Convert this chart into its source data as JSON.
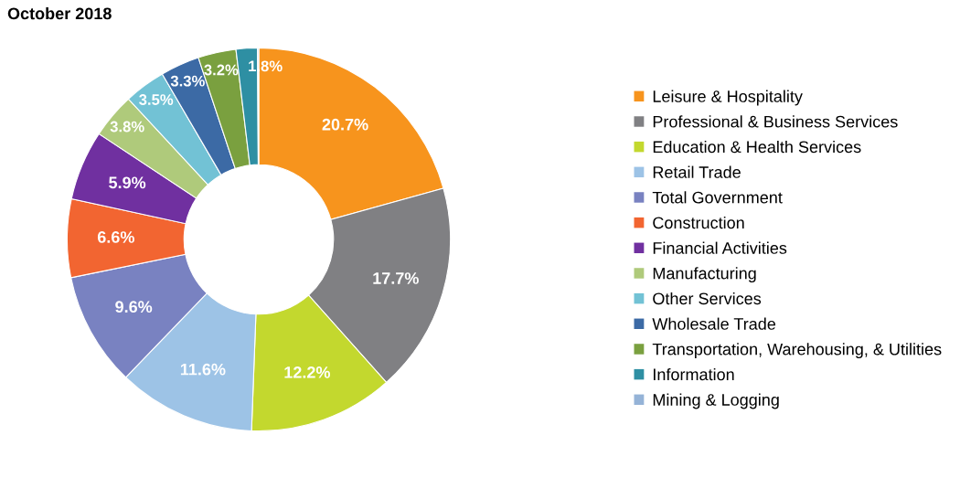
{
  "chart_data": {
    "type": "donut",
    "title": "October 2018",
    "categories": [
      "Leisure & Hospitality",
      "Professional & Business Services",
      "Education & Health Services",
      "Retail Trade",
      "Total Government",
      "Construction",
      "Financial Activities",
      "Manufacturing",
      "Other Services",
      "Wholesale Trade",
      "Transportation, Warehousing, & Utilities",
      "Information",
      "Mining & Logging"
    ],
    "values": [
      20.7,
      17.7,
      12.2,
      11.6,
      9.6,
      6.6,
      5.9,
      3.8,
      3.5,
      3.3,
      3.2,
      1.8,
      0.1
    ],
    "value_labels": [
      "20.7%",
      "17.7%",
      "12.2%",
      "11.6%",
      "9.6%",
      "6.6%",
      "5.9%",
      "3.8%",
      "3.5%",
      "3.3%",
      "3.2%",
      "1.8%",
      null
    ],
    "colors": [
      "#f7941d",
      "#808083",
      "#c3d82e",
      "#9dc3e6",
      "#7982c1",
      "#f26531",
      "#7030a0",
      "#afca7b",
      "#72c2d5",
      "#3c6aa5",
      "#7aa03f",
      "#2e8fa3",
      "#95b3d7"
    ],
    "legend": "right"
  }
}
